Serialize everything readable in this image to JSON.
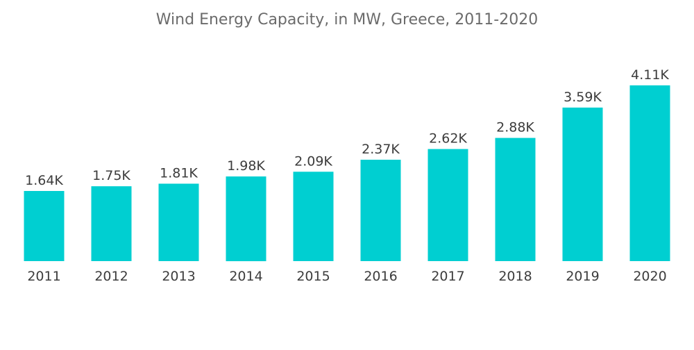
{
  "chart_data": {
    "type": "bar",
    "title": "Wind Energy Capacity, in MW, Greece, 2011-2020",
    "xlabel": "",
    "ylabel": "",
    "categories": [
      "2011",
      "2012",
      "2013",
      "2014",
      "2015",
      "2016",
      "2017",
      "2018",
      "2019",
      "2020"
    ],
    "values": [
      1640,
      1750,
      1810,
      1980,
      2090,
      2370,
      2620,
      2880,
      3590,
      4110
    ],
    "value_labels": [
      "1.64K",
      "1.75K",
      "1.81K",
      "1.98K",
      "2.09K",
      "2.37K",
      "2.62K",
      "2.88K",
      "3.59K",
      "4.11K"
    ],
    "ylim": [
      0,
      4400
    ],
    "grid": false,
    "bar_color": "#00cfd1"
  }
}
